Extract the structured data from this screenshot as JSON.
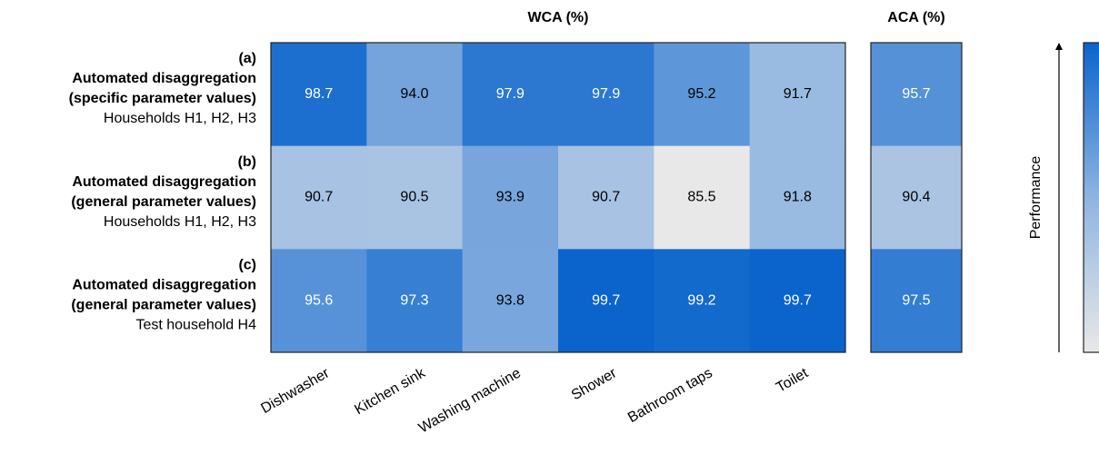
{
  "chart_data": [
    {
      "type": "heatmap",
      "title": "WCA (%)",
      "categories": [
        "Dishwasher",
        "Kitchen sink",
        "Washing machine",
        "Shower",
        "Bathroom taps",
        "Toilet"
      ],
      "rows": [
        [
          "(a)",
          "Automated disaggregation",
          "(specific parameter values)",
          "Households H1, H2, H3"
        ],
        [
          "(b)",
          "Automated disaggregation",
          "(general parameter values)",
          "Households H1, H2, H3"
        ],
        [
          "(c)",
          "Automated disaggregation",
          "(general parameter values)",
          "Test household H4"
        ]
      ],
      "values": [
        [
          98.7,
          94.0,
          97.9,
          97.9,
          95.2,
          91.7
        ],
        [
          90.7,
          90.5,
          93.9,
          90.7,
          85.5,
          91.8
        ],
        [
          95.6,
          97.3,
          93.8,
          99.7,
          99.2,
          99.7
        ]
      ],
      "value_labels": [
        [
          "98.7",
          "94.0",
          "97.9",
          "97.9",
          "95.2",
          "91.7"
        ],
        [
          "90.7",
          "90.5",
          "93.9",
          "90.7",
          "85.5",
          "91.8"
        ],
        [
          "95.6",
          "97.3",
          "93.8",
          "99.7",
          "99.2",
          "99.7"
        ]
      ]
    },
    {
      "type": "heatmap",
      "title": "ACA (%)",
      "values": [
        [
          95.7
        ],
        [
          90.4
        ],
        [
          97.5
        ]
      ],
      "value_labels": [
        [
          "95.7"
        ],
        [
          "90.4"
        ],
        [
          "97.5"
        ]
      ]
    }
  ],
  "colorbar": {
    "label": "Performance",
    "colors": [
      "#e8e8e8",
      "#8fb4e0",
      "#0a64cc"
    ]
  }
}
